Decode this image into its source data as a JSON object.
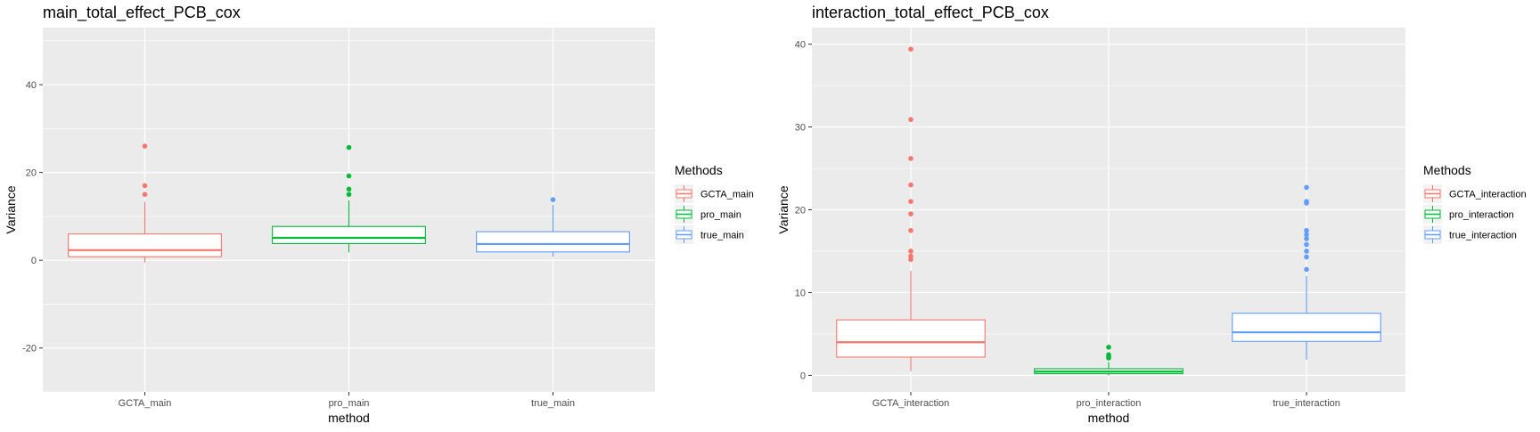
{
  "chart_data": [
    {
      "type": "boxplot",
      "title": "main_total_effect_PCB_cox",
      "xlabel": "method",
      "ylabel": "Variance",
      "ylim": [
        -30,
        53
      ],
      "y_ticks": [
        -20,
        0,
        20,
        40
      ],
      "grid": true,
      "legend": {
        "title": "Methods",
        "position": "right",
        "entries": [
          "GCTA_main",
          "pro_main",
          "true_main"
        ]
      },
      "categories": [
        "GCTA_main",
        "pro_main",
        "true_main"
      ],
      "series": [
        {
          "name": "GCTA_main",
          "color": "#F8766D",
          "q1": 0.8,
          "median": 2.3,
          "q3": 6.0,
          "whisker_low": -0.5,
          "whisker_high": 13.3,
          "outliers": [
            15.0,
            17.0,
            26.0
          ]
        },
        {
          "name": "pro_main",
          "color": "#00BA38",
          "q1": 3.8,
          "median": 5.1,
          "q3": 7.7,
          "whisker_low": 1.8,
          "whisker_high": 13.6,
          "outliers": [
            15.0,
            16.2,
            19.2,
            25.7
          ]
        },
        {
          "name": "true_main",
          "color": "#619CFF",
          "q1": 1.9,
          "median": 3.7,
          "q3": 6.5,
          "whisker_low": 0.8,
          "whisker_high": 12.6,
          "outliers": [
            13.8
          ]
        }
      ]
    },
    {
      "type": "boxplot",
      "title": "interaction_total_effect_PCB_cox",
      "xlabel": "method",
      "ylabel": "Variance",
      "ylim": [
        -2,
        42
      ],
      "y_ticks": [
        0,
        10,
        20,
        30,
        40
      ],
      "grid": true,
      "legend": {
        "title": "Methods",
        "position": "right",
        "entries": [
          "GCTA_interaction",
          "pro_interaction",
          "true_interaction"
        ]
      },
      "categories": [
        "GCTA_interaction",
        "pro_interaction",
        "true_interaction"
      ],
      "series": [
        {
          "name": "GCTA_interaction",
          "color": "#F8766D",
          "q1": 2.2,
          "median": 4.0,
          "q3": 6.7,
          "whisker_low": 0.5,
          "whisker_high": 12.6,
          "outliers": [
            14.0,
            14.4,
            15.0,
            17.5,
            19.5,
            21.0,
            23.0,
            26.2,
            30.9,
            39.4
          ]
        },
        {
          "name": "pro_interaction",
          "color": "#00BA38",
          "q1": 0.2,
          "median": 0.45,
          "q3": 0.8,
          "whisker_low": 0.0,
          "whisker_high": 1.6,
          "outliers": [
            2.1,
            2.3,
            2.5,
            3.4
          ]
        },
        {
          "name": "true_interaction",
          "color": "#619CFF",
          "q1": 4.1,
          "median": 5.2,
          "q3": 7.5,
          "whisker_low": 1.9,
          "whisker_high": 12.0,
          "outliers": [
            12.8,
            14.3,
            15.0,
            15.8,
            16.5,
            17.0,
            17.5,
            20.8,
            21.0,
            22.7
          ]
        }
      ]
    }
  ]
}
